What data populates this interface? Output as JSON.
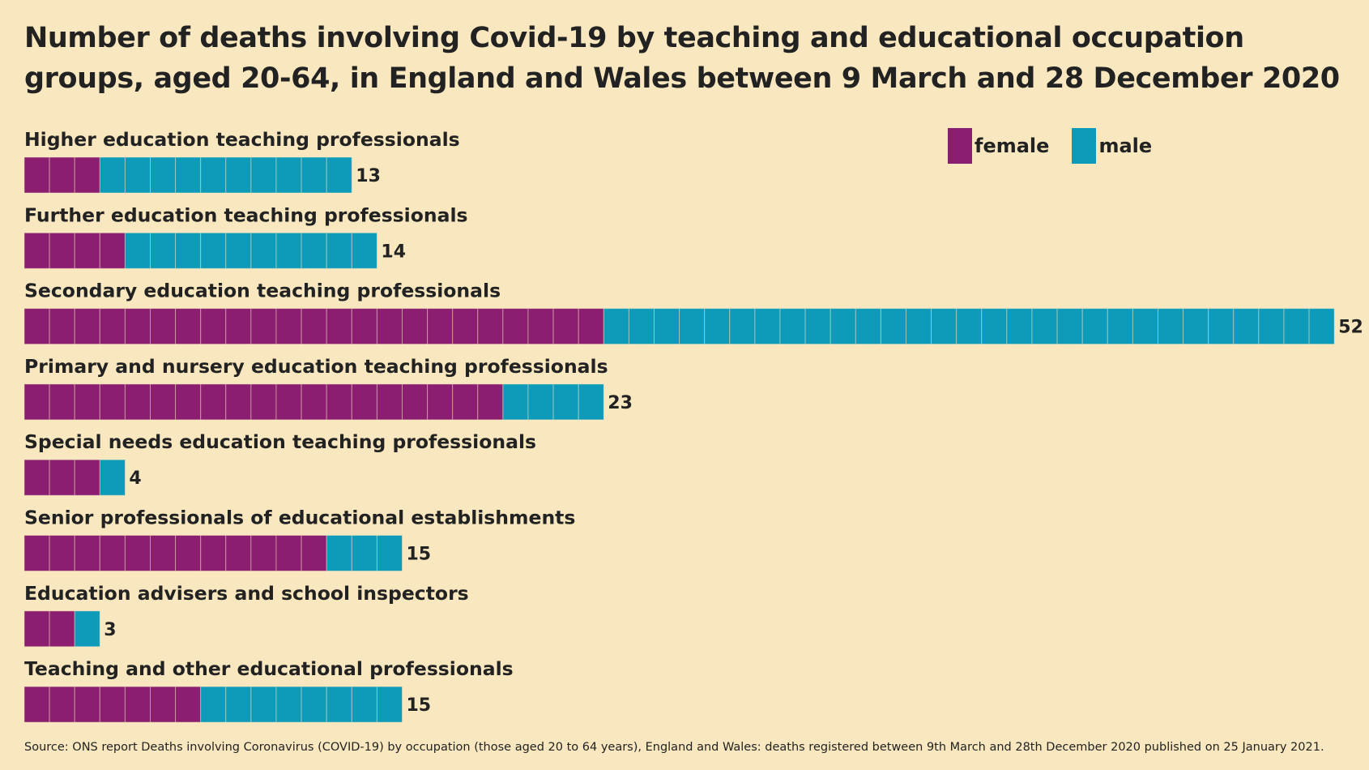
{
  "title": "Number of deaths involving Covid-19 by teaching and educational occupation groups, aged 20-64, in England and Wales between 9 March and 28 December 2020",
  "legend": {
    "female": "female",
    "male": "male"
  },
  "colors": {
    "background": "#f9e8bf",
    "female": "#8b1e70",
    "male": "#0e9ab9",
    "text": "#222222"
  },
  "source": "Source: ONS report Deaths involving Coronavirus (COVID-19) by occupation (those aged 20 to 64 years), England and Wales: deaths registered between 9th March and 28th December 2020 published on 25 January 2021.",
  "chart_data": {
    "type": "bar",
    "orientation": "horizontal",
    "stacked": true,
    "unit_style": "one square per death",
    "categories": [
      "Higher education teaching professionals",
      "Further education teaching professionals",
      "Secondary education teaching professionals",
      "Primary and nursery education teaching professionals",
      "Special needs education teaching professionals",
      "Senior professionals of educational establishments",
      "Education advisers and school inspectors",
      "Teaching and other educational professionals"
    ],
    "series": [
      {
        "name": "female",
        "values": [
          3,
          4,
          23,
          19,
          3,
          12,
          2,
          7
        ]
      },
      {
        "name": "male",
        "values": [
          10,
          10,
          29,
          4,
          1,
          3,
          1,
          8
        ]
      }
    ],
    "totals": [
      13,
      14,
      52,
      23,
      4,
      15,
      3,
      15
    ],
    "legend_position": "top-right",
    "grid": false
  }
}
